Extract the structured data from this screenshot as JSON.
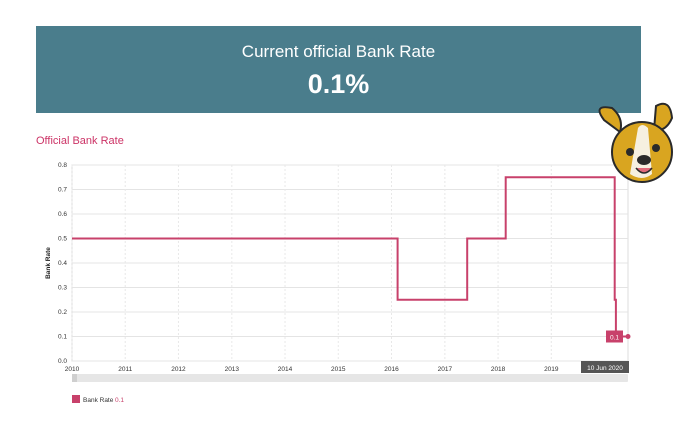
{
  "header": {
    "label": "Current official Bank Rate",
    "value": "0.1%"
  },
  "section": {
    "title": "Official Bank Rate"
  },
  "colors": {
    "banner": "#4a7d8c",
    "accent": "#cc3366",
    "line": "#c8416b",
    "tooltip": "#555555"
  },
  "chart_data": {
    "type": "line",
    "step": true,
    "ylabel": "Bank Rate",
    "xlim": [
      "2010-01-01",
      "2020-06-10"
    ],
    "ylim": [
      0,
      0.8
    ],
    "y_ticks": [
      "0.0",
      "0.1",
      "0.2",
      "0.3",
      "0.4",
      "0.5",
      "0.6",
      "0.7",
      "0.8"
    ],
    "x_ticks": [
      "2010",
      "2011",
      "2012",
      "2013",
      "2014",
      "2015",
      "2016",
      "2017",
      "2018",
      "2019"
    ],
    "grid": true,
    "legend": "bottom-left",
    "series": [
      {
        "name": "Bank Rate",
        "color": "#c8416b",
        "points": [
          [
            "2010-01-01",
            0.5
          ],
          [
            "2016-02-12",
            0.5
          ],
          [
            "2016-02-12",
            0.25
          ],
          [
            "2017-06-03",
            0.25
          ],
          [
            "2017-06-03",
            0.5
          ],
          [
            "2018-02-22",
            0.5
          ],
          [
            "2018-02-22",
            0.75
          ],
          [
            "2020-03-11",
            0.75
          ],
          [
            "2020-03-11",
            0.25
          ],
          [
            "2020-03-19",
            0.25
          ],
          [
            "2020-03-19",
            0.1
          ],
          [
            "2020-06-10",
            0.1
          ]
        ]
      }
    ],
    "tooltip": {
      "date_label": "10 Jun 2020",
      "value_label": "0.1"
    },
    "legend_value": "0.1"
  }
}
